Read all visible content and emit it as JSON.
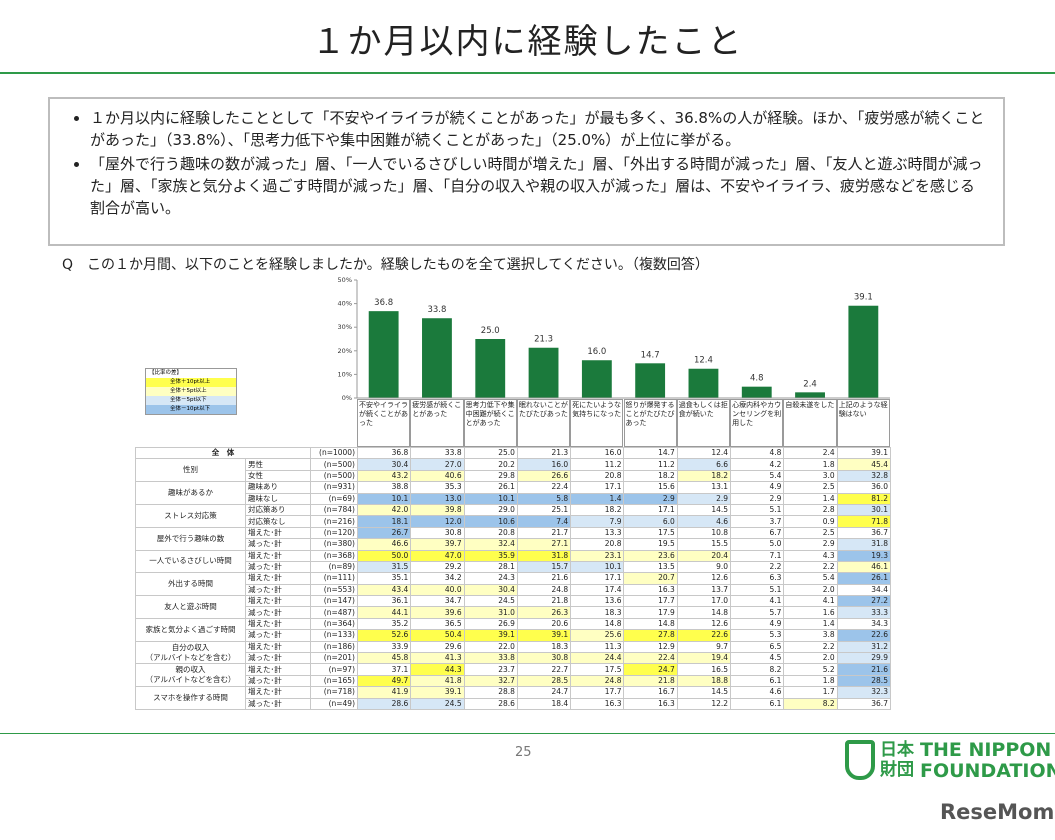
{
  "title": "１か月以内に経験したこと",
  "bullets": [
    "１か月以内に経験したこととして「不安やイライラが続くことがあった」が最も多く、36.8%の人が経験。ほか、「疲労感が続くことがあった」（33.8%）、「思考力低下や集中困難が続くことがあった」（25.0%）が上位に挙がる。",
    "「屋外で行う趣味の数が減った」層、「一人でいるさびしい時間が増えた」層、「外出する時間が減った」層、「友人と遊ぶ時間が減った」層、「家族と気分よく過ごす時間が減った」層、「自分の収入や親の収入が減った」層は、不安やイライラ、疲労感などを感じる割合が高い。"
  ],
  "question": "Q　この１か月間、以下のことを経験しましたか。経験したものを全て選択してください。（複数回答）",
  "chart_data": {
    "type": "bar",
    "color": "#1b7a3c",
    "categories": [
      "不安やイライラが続くことがあった",
      "疲労感が続くことがあった",
      "思考力低下や集中困難が続くことがあった",
      "眠れないことがたびたびあった",
      "死にたいような気持ちになった",
      "怒りが爆発することがたびたびあった",
      "過食もしくは拒食が続いた",
      "心療内科やカウンセリングを利用した",
      "自殺未遂をした",
      "上記のような経験はない"
    ],
    "values": [
      36.8,
      33.8,
      25.0,
      21.3,
      16.0,
      14.7,
      12.4,
      4.8,
      2.4,
      39.1
    ],
    "value_labels": [
      "36.8",
      "33.8",
      "25.0",
      "21.3",
      "16.0",
      "14.7",
      "12.4",
      "4.8",
      "2.4",
      "39.1"
    ],
    "ylim": [
      0,
      50
    ],
    "yticks": [
      {
        "value": 0,
        "label": "0%"
      },
      {
        "value": 10,
        "label": "10%"
      },
      {
        "value": 20,
        "label": "20%"
      },
      {
        "value": 30,
        "label": "30%"
      },
      {
        "value": 40,
        "label": "40%"
      },
      {
        "value": 50,
        "label": "50%"
      }
    ]
  },
  "legend": {
    "title": "【比率の差】",
    "items": [
      {
        "label": "全体＋10pt以上",
        "color": "#ffff4d"
      },
      {
        "label": "全体＋5pt以上",
        "color": "#ffffc2"
      },
      {
        "label": "全体－5pt以下",
        "color": "#d6e7f6"
      },
      {
        "label": "全体－10pt以下",
        "color": "#9cc4ea"
      }
    ]
  },
  "table": {
    "total": {
      "label": "全　体",
      "n": "(n=1000)",
      "values": [
        "36.8",
        "33.8",
        "25.0",
        "21.3",
        "16.0",
        "14.7",
        "12.4",
        "4.8",
        "2.4",
        "39.1"
      ]
    },
    "groups": [
      {
        "label": [
          "性別"
        ],
        "rows": [
          {
            "label": "男性",
            "n": "(n=500)",
            "values": [
              "30.4",
              "27.0",
              "20.2",
              "16.0",
              "11.2",
              "11.2",
              "6.6",
              "4.2",
              "1.8",
              "45.4"
            ],
            "colors": [
              "#d6e7f6",
              "#d6e7f6",
              null,
              "#d6e7f6",
              null,
              null,
              "#d6e7f6",
              null,
              null,
              "#ffffc2"
            ]
          },
          {
            "label": "女性",
            "n": "(n=500)",
            "values": [
              "43.2",
              "40.6",
              "29.8",
              "26.6",
              "20.8",
              "18.2",
              "18.2",
              "5.4",
              "3.0",
              "32.8"
            ],
            "colors": [
              "#ffffc2",
              "#ffffc2",
              null,
              "#ffffc2",
              null,
              null,
              "#ffffc2",
              null,
              null,
              "#d6e7f6"
            ]
          }
        ]
      },
      {
        "label": [
          "趣味があるか"
        ],
        "rows": [
          {
            "label": "趣味あり",
            "n": "(n=931)",
            "values": [
              "38.8",
              "35.3",
              "26.1",
              "22.4",
              "17.1",
              "15.6",
              "13.1",
              "4.9",
              "2.5",
              "36.0"
            ],
            "colors": [
              null,
              null,
              null,
              null,
              null,
              null,
              null,
              null,
              null,
              null
            ]
          },
          {
            "label": "趣味なし",
            "n": "(n=69)",
            "values": [
              "10.1",
              "13.0",
              "10.1",
              "5.8",
              "1.4",
              "2.9",
              "2.9",
              "2.9",
              "1.4",
              "81.2"
            ],
            "colors": [
              "#9cc4ea",
              "#9cc4ea",
              "#9cc4ea",
              "#9cc4ea",
              "#9cc4ea",
              "#9cc4ea",
              "#d6e7f6",
              null,
              null,
              "#ffff4d"
            ]
          }
        ]
      },
      {
        "label": [
          "ストレス対応策"
        ],
        "rows": [
          {
            "label": "対応策あり",
            "n": "(n=784)",
            "values": [
              "42.0",
              "39.8",
              "29.0",
              "25.1",
              "18.2",
              "17.1",
              "14.5",
              "5.1",
              "2.8",
              "30.1"
            ],
            "colors": [
              "#ffffc2",
              "#ffffc2",
              null,
              null,
              null,
              null,
              null,
              null,
              null,
              "#d6e7f6"
            ]
          },
          {
            "label": "対応策なし",
            "n": "(n=216)",
            "values": [
              "18.1",
              "12.0",
              "10.6",
              "7.4",
              "7.9",
              "6.0",
              "4.6",
              "3.7",
              "0.9",
              "71.8"
            ],
            "colors": [
              "#9cc4ea",
              "#9cc4ea",
              "#9cc4ea",
              "#9cc4ea",
              "#d6e7f6",
              "#d6e7f6",
              "#d6e7f6",
              null,
              null,
              "#ffff4d"
            ]
          }
        ]
      },
      {
        "label": [
          "屋外で行う趣味の数"
        ],
        "rows": [
          {
            "label": "増えた･計",
            "n": "(n=120)",
            "values": [
              "26.7",
              "30.8",
              "20.8",
              "21.7",
              "13.3",
              "17.5",
              "10.8",
              "6.7",
              "2.5",
              "36.7"
            ],
            "colors": [
              "#9cc4ea",
              null,
              null,
              null,
              null,
              null,
              null,
              null,
              null,
              null
            ]
          },
          {
            "label": "減った･計",
            "n": "(n=380)",
            "values": [
              "46.6",
              "39.7",
              "32.4",
              "27.1",
              "20.8",
              "19.5",
              "15.5",
              "5.0",
              "2.9",
              "31.8"
            ],
            "colors": [
              "#ffffc2",
              "#ffffc2",
              "#ffffc2",
              "#ffffc2",
              null,
              null,
              null,
              null,
              null,
              "#d6e7f6"
            ]
          }
        ]
      },
      {
        "label": [
          "一人でいるさびしい時間"
        ],
        "rows": [
          {
            "label": "増えた･計",
            "n": "(n=368)",
            "values": [
              "50.0",
              "47.0",
              "35.9",
              "31.8",
              "23.1",
              "23.6",
              "20.4",
              "7.1",
              "4.3",
              "19.3"
            ],
            "colors": [
              "#ffff4d",
              "#ffff4d",
              "#ffff4d",
              "#ffff4d",
              "#ffffc2",
              "#ffffc2",
              "#ffffc2",
              null,
              null,
              "#9cc4ea"
            ]
          },
          {
            "label": "減った･計",
            "n": "(n=89)",
            "values": [
              "31.5",
              "29.2",
              "28.1",
              "15.7",
              "10.1",
              "13.5",
              "9.0",
              "2.2",
              "2.2",
              "46.1"
            ],
            "colors": [
              "#d6e7f6",
              null,
              null,
              "#d6e7f6",
              "#d6e7f6",
              null,
              null,
              null,
              null,
              "#ffffc2"
            ]
          }
        ]
      },
      {
        "label": [
          "外出する時間"
        ],
        "rows": [
          {
            "label": "増えた･計",
            "n": "(n=111)",
            "values": [
              "35.1",
              "34.2",
              "24.3",
              "21.6",
              "17.1",
              "20.7",
              "12.6",
              "6.3",
              "5.4",
              "26.1"
            ],
            "colors": [
              null,
              null,
              null,
              null,
              null,
              "#ffffc2",
              null,
              null,
              null,
              "#9cc4ea"
            ]
          },
          {
            "label": "減った･計",
            "n": "(n=553)",
            "values": [
              "43.4",
              "40.0",
              "30.4",
              "24.8",
              "17.4",
              "16.3",
              "13.7",
              "5.1",
              "2.0",
              "34.4"
            ],
            "colors": [
              "#ffffc2",
              "#ffffc2",
              "#ffffc2",
              null,
              null,
              null,
              null,
              null,
              null,
              null
            ]
          }
        ]
      },
      {
        "label": [
          "友人と遊ぶ時間"
        ],
        "rows": [
          {
            "label": "増えた･計",
            "n": "(n=147)",
            "values": [
              "36.1",
              "34.7",
              "24.5",
              "21.8",
              "13.6",
              "17.7",
              "17.0",
              "4.1",
              "4.1",
              "27.2"
            ],
            "colors": [
              null,
              null,
              null,
              null,
              null,
              null,
              null,
              null,
              null,
              "#9cc4ea"
            ]
          },
          {
            "label": "減った･計",
            "n": "(n=487)",
            "values": [
              "44.1",
              "39.6",
              "31.0",
              "26.3",
              "18.3",
              "17.9",
              "14.8",
              "5.7",
              "1.6",
              "33.3"
            ],
            "colors": [
              "#ffffc2",
              "#ffffc2",
              "#ffffc2",
              "#ffffc2",
              null,
              null,
              null,
              null,
              null,
              "#d6e7f6"
            ]
          }
        ]
      },
      {
        "label": [
          "家族と気分よく過ごす時間"
        ],
        "rows": [
          {
            "label": "増えた･計",
            "n": "(n=364)",
            "values": [
              "35.2",
              "36.5",
              "26.9",
              "20.6",
              "14.8",
              "14.8",
              "12.6",
              "4.9",
              "1.4",
              "34.3"
            ],
            "colors": [
              null,
              null,
              null,
              null,
              null,
              null,
              null,
              null,
              null,
              null
            ]
          },
          {
            "label": "減った･計",
            "n": "(n=133)",
            "values": [
              "52.6",
              "50.4",
              "39.1",
              "39.1",
              "25.6",
              "27.8",
              "22.6",
              "5.3",
              "3.8",
              "22.6"
            ],
            "colors": [
              "#ffff4d",
              "#ffff4d",
              "#ffff4d",
              "#ffff4d",
              "#ffffc2",
              "#ffff4d",
              "#ffff4d",
              null,
              null,
              "#9cc4ea"
            ]
          }
        ]
      },
      {
        "label": [
          "自分の収入",
          "（アルバイトなどを含む）"
        ],
        "rows": [
          {
            "label": "増えた･計",
            "n": "(n=186)",
            "values": [
              "33.9",
              "29.6",
              "22.0",
              "18.3",
              "11.3",
              "12.9",
              "9.7",
              "6.5",
              "2.2",
              "31.2"
            ],
            "colors": [
              null,
              null,
              null,
              null,
              null,
              null,
              null,
              null,
              null,
              "#d6e7f6"
            ]
          },
          {
            "label": "減った･計",
            "n": "(n=201)",
            "values": [
              "45.8",
              "41.3",
              "33.8",
              "30.8",
              "24.4",
              "22.4",
              "19.4",
              "4.5",
              "2.0",
              "29.9"
            ],
            "colors": [
              "#ffffc2",
              "#ffffc2",
              "#ffffc2",
              "#ffffc2",
              "#ffffc2",
              "#ffffc2",
              "#ffffc2",
              null,
              null,
              "#d6e7f6"
            ]
          }
        ]
      },
      {
        "label": [
          "親の収入",
          "（アルバイトなどを含む）"
        ],
        "rows": [
          {
            "label": "増えた･計",
            "n": "(n=97)",
            "values": [
              "37.1",
              "44.3",
              "23.7",
              "22.7",
              "17.5",
              "24.7",
              "16.5",
              "8.2",
              "5.2",
              "21.6"
            ],
            "colors": [
              null,
              "#ffff4d",
              null,
              null,
              null,
              "#ffff4d",
              null,
              null,
              null,
              "#9cc4ea"
            ]
          },
          {
            "label": "減った･計",
            "n": "(n=165)",
            "values": [
              "49.7",
              "41.8",
              "32.7",
              "28.5",
              "24.8",
              "21.8",
              "18.8",
              "6.1",
              "1.8",
              "28.5"
            ],
            "colors": [
              "#ffff4d",
              "#ffffc2",
              "#ffffc2",
              "#ffffc2",
              "#ffffc2",
              "#ffffc2",
              "#ffffc2",
              null,
              null,
              "#9cc4ea"
            ]
          }
        ]
      },
      {
        "label": [
          "スマホを操作する時間"
        ],
        "rows": [
          {
            "label": "増えた･計",
            "n": "(n=718)",
            "values": [
              "41.9",
              "39.1",
              "28.8",
              "24.7",
              "17.7",
              "16.7",
              "14.5",
              "4.6",
              "1.7",
              "32.3"
            ],
            "colors": [
              "#ffffc2",
              "#ffffc2",
              null,
              null,
              null,
              null,
              null,
              null,
              null,
              "#d6e7f6"
            ]
          },
          {
            "label": "減った･計",
            "n": "(n=49)",
            "values": [
              "28.6",
              "24.5",
              "28.6",
              "18.4",
              "16.3",
              "16.3",
              "12.2",
              "6.1",
              "8.2",
              "36.7"
            ],
            "colors": [
              "#d6e7f6",
              "#d6e7f6",
              null,
              null,
              null,
              null,
              null,
              null,
              "#ffffc2",
              null
            ]
          }
        ]
      }
    ]
  },
  "page_number": "25",
  "logo": {
    "mark_top": "日本",
    "mark_bottom": "財団",
    "line1": "THE NIPPON",
    "line2": "FOUNDATION"
  },
  "watermark": "ReseMom"
}
